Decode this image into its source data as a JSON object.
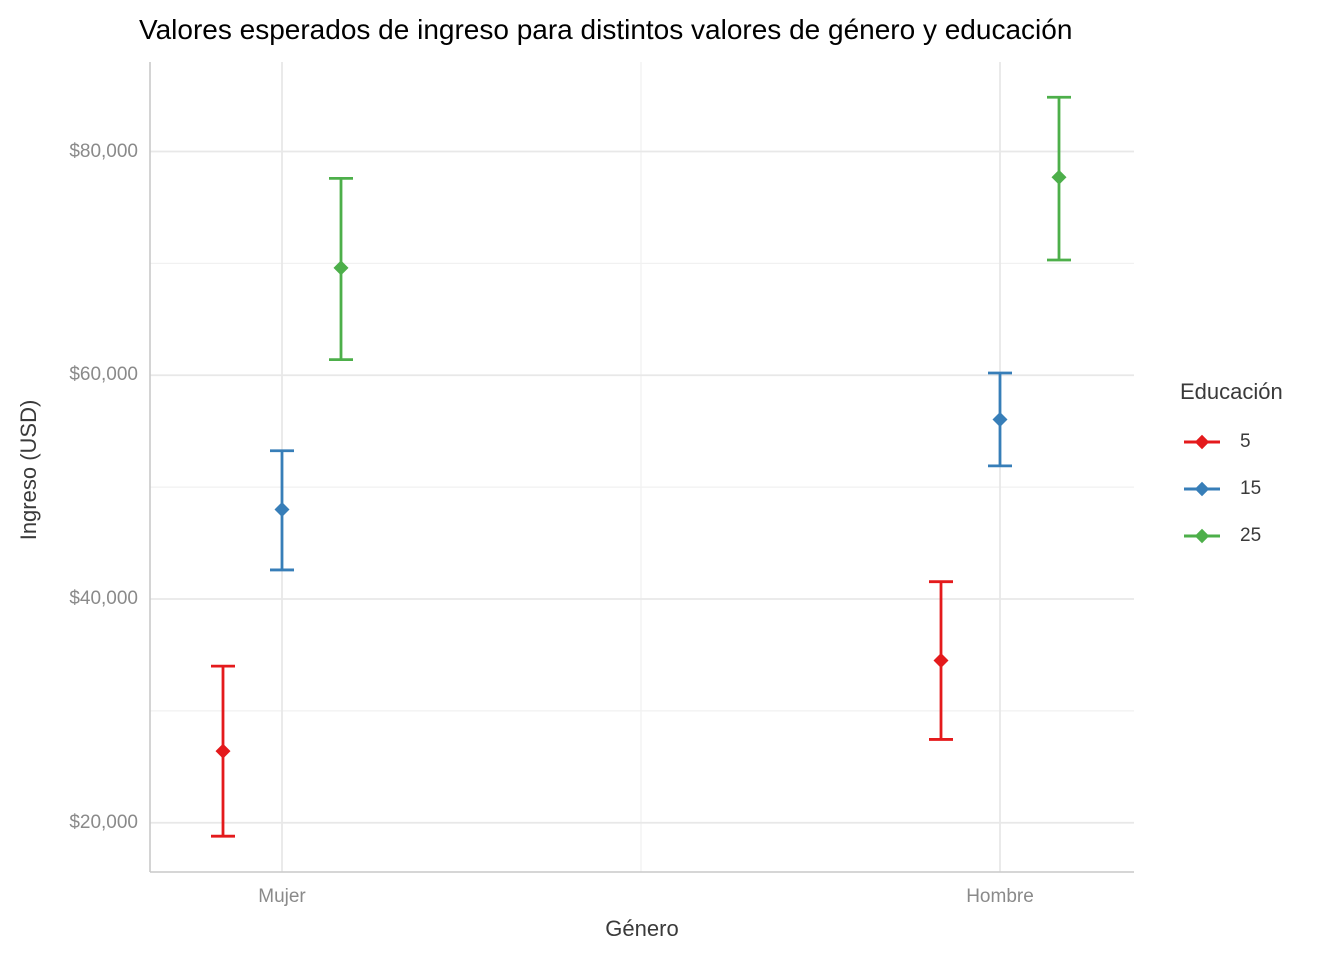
{
  "title": "Valores esperados de ingreso para distintos valores de género y educación",
  "axes": {
    "x_title": "Género",
    "y_title": "Ingreso (USD)",
    "x_tick_labels": [
      "Mujer",
      "Hombre"
    ],
    "y_tick_labels": [
      "$20,000",
      "$40,000",
      "$60,000",
      "$80,000"
    ]
  },
  "legend": {
    "title": "Educación",
    "items": [
      {
        "label": "5",
        "color": "#E41A1C"
      },
      {
        "label": "15",
        "color": "#377EB8"
      },
      {
        "label": "25",
        "color": "#4DAF4A"
      }
    ]
  },
  "chart_data": {
    "type": "pointrange",
    "title": "Valores esperados de ingreso para distintos valores de género y educación",
    "xlabel": "Género",
    "ylabel": "Ingreso (USD)",
    "categories": [
      "Mujer",
      "Hombre"
    ],
    "ylim": [
      15600,
      88000
    ],
    "yticks_major": [
      20000,
      40000,
      60000,
      80000
    ],
    "yticks_minor": [
      30000,
      50000,
      70000
    ],
    "ytick_format": "$#,##0",
    "grid": true,
    "legend_title": "Educación",
    "legend_position": "right",
    "point_shape": "diamond",
    "series": [
      {
        "name": "5",
        "color": "#E41A1C",
        "points": [
          {
            "category": "Mujer",
            "estimate": 26400,
            "lower": 18800,
            "upper": 34000
          },
          {
            "category": "Hombre",
            "estimate": 34500,
            "lower": 27450,
            "upper": 41550
          }
        ]
      },
      {
        "name": "15",
        "color": "#377EB8",
        "points": [
          {
            "category": "Mujer",
            "estimate": 48000,
            "lower": 42600,
            "upper": 53250
          },
          {
            "category": "Hombre",
            "estimate": 56050,
            "lower": 51900,
            "upper": 60200
          }
        ]
      },
      {
        "name": "25",
        "color": "#4DAF4A",
        "points": [
          {
            "category": "Mujer",
            "estimate": 69600,
            "lower": 61400,
            "upper": 77600
          },
          {
            "category": "Hombre",
            "estimate": 77700,
            "lower": 70300,
            "upper": 84850
          }
        ]
      }
    ]
  }
}
